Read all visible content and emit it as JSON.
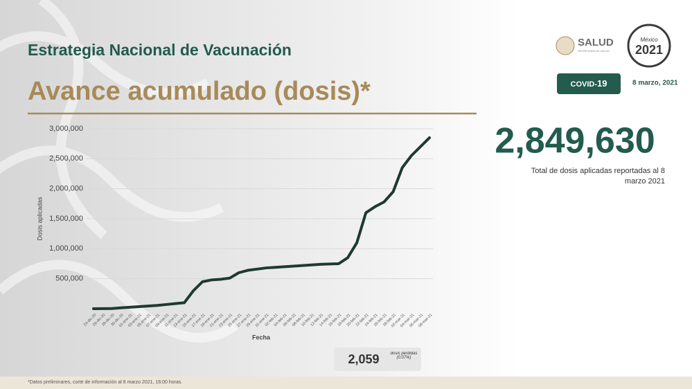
{
  "header": {
    "program": "Estrategia Nacional de Vacunación",
    "title": "Avance acumulado (dosis)*",
    "agency": "SALUD",
    "agency_sub": "SECRETARÍA DE SALUD",
    "badge_a": "COVID-",
    "badge_b": "19",
    "date": "8 marzo, 2021",
    "logo_year": "2021",
    "logo_top": "México"
  },
  "summary": {
    "total": "2,849,630",
    "total_note": "Total de dosis aplicadas reportadas al 8 marzo 2021",
    "lost": "2,059",
    "lost_note": "dosis perdidas (0.07%)"
  },
  "footnote": "*Datos preliminares, corte de información al 8 marzo 2021, 16:00 horas.",
  "chart_data": {
    "type": "line",
    "x_label": "Fecha",
    "y_label": "Dosis aplicadas",
    "categories": [
      "24-dic-20",
      "26-dic-20",
      "28-dic-20",
      "30-dic-20",
      "01-ene-21",
      "03-ene-21",
      "05-ene-21",
      "07-ene-21",
      "09-ene-21",
      "11-ene-21",
      "13-ene-21",
      "15-ene-21",
      "17-ene-21",
      "19-ene-21",
      "21-ene-21",
      "23-ene-21",
      "25-ene-21",
      "27-ene-21",
      "29-ene-21",
      "31-ene-21",
      "02-feb-21",
      "04-feb-21",
      "06-feb-21",
      "08-feb-21",
      "10-feb-21",
      "12-feb-21",
      "14-feb-21",
      "16-feb-21",
      "18-feb-21",
      "20-feb-21",
      "22-feb-21",
      "24-feb-21",
      "26-feb-21",
      "28-feb-21",
      "02-mar-21",
      "04-mar-21",
      "06-mar-21",
      "08-mar-21"
    ],
    "series": [
      {
        "color": "#1d3a2e",
        "values": [
          0,
          1000,
          3000,
          15000,
          25000,
          35000,
          45000,
          55000,
          70000,
          85000,
          100000,
          300000,
          450000,
          480000,
          490000,
          510000,
          600000,
          640000,
          660000,
          680000,
          690000,
          700000,
          710000,
          720000,
          730000,
          740000,
          745000,
          750000,
          850000,
          1100000,
          1600000,
          1700000,
          1780000,
          1950000,
          2350000,
          2550000,
          2700000,
          2849630
        ]
      }
    ],
    "ylim": [
      0,
      3000000
    ],
    "yticks": [
      {
        "value": 500000,
        "label": "500,000"
      },
      {
        "value": 1000000,
        "label": "1,000,000"
      },
      {
        "value": 1500000,
        "label": "1,500,000"
      },
      {
        "value": 2000000,
        "label": "2,000,000"
      },
      {
        "value": 2500000,
        "label": "2,500,000"
      },
      {
        "value": 3000000,
        "label": "3,000,000"
      }
    ],
    "grid": true
  }
}
